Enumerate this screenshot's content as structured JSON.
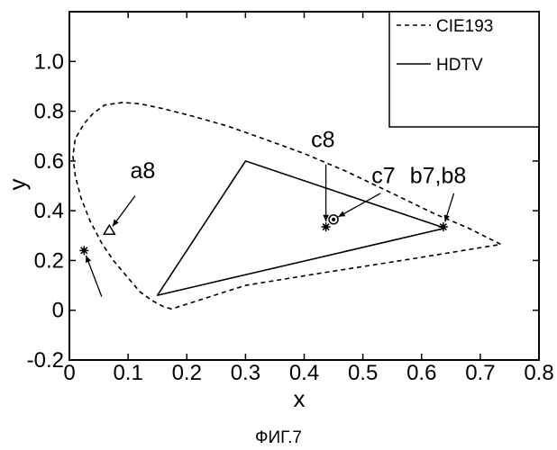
{
  "chart_data": {
    "type": "line",
    "xlabel": "x",
    "ylabel": "y",
    "xlim": [
      0,
      0.8
    ],
    "ylim": [
      -0.2,
      1.2
    ],
    "x_ticks": [
      "0",
      "0.1",
      "0.2",
      "0.3",
      "0.4",
      "0.5",
      "0.6",
      "0.7",
      "0.8"
    ],
    "y_ticks": [
      "-0.2",
      "0",
      "0.2",
      "0.4",
      "0.6",
      "0.8",
      "1.0"
    ],
    "legend_position": "top-right",
    "series": [
      {
        "name": "CIE193",
        "style": "dashed",
        "points": [
          [
            0.174,
            0.005
          ],
          [
            0.16,
            0.015
          ],
          [
            0.14,
            0.04
          ],
          [
            0.12,
            0.075
          ],
          [
            0.1,
            0.13
          ],
          [
            0.075,
            0.2
          ],
          [
            0.055,
            0.27
          ],
          [
            0.035,
            0.36
          ],
          [
            0.02,
            0.45
          ],
          [
            0.01,
            0.54
          ],
          [
            0.006,
            0.62
          ],
          [
            0.01,
            0.69
          ],
          [
            0.025,
            0.75
          ],
          [
            0.04,
            0.79
          ],
          [
            0.06,
            0.825
          ],
          [
            0.09,
            0.835
          ],
          [
            0.12,
            0.83
          ],
          [
            0.16,
            0.81
          ],
          [
            0.21,
            0.78
          ],
          [
            0.27,
            0.74
          ],
          [
            0.33,
            0.69
          ],
          [
            0.4,
            0.63
          ],
          [
            0.47,
            0.56
          ],
          [
            0.55,
            0.47
          ],
          [
            0.62,
            0.39
          ],
          [
            0.68,
            0.33
          ],
          [
            0.735,
            0.265
          ],
          [
            0.58,
            0.205
          ],
          [
            0.43,
            0.15
          ],
          [
            0.3,
            0.1
          ],
          [
            0.174,
            0.005
          ]
        ]
      },
      {
        "name": "HDTV",
        "style": "solid",
        "points": [
          [
            0.64,
            0.33
          ],
          [
            0.3,
            0.6
          ],
          [
            0.15,
            0.06
          ],
          [
            0.64,
            0.33
          ]
        ]
      }
    ],
    "markers": [
      {
        "label": "a8",
        "symbol": "triangle",
        "x": 0.068,
        "y": 0.32,
        "label_x": 0.125,
        "label_y": 0.53,
        "leader_from": [
          0.112,
          0.46
        ]
      },
      {
        "label": "c8",
        "symbol": "star",
        "x": 0.437,
        "y": 0.335,
        "label_x": 0.432,
        "label_y": 0.655,
        "leader_from": [
          0.437,
          0.585
        ]
      },
      {
        "label": "c7",
        "symbol": "circle",
        "x": 0.45,
        "y": 0.365,
        "label_x": 0.535,
        "label_y": 0.51,
        "leader_from": [
          0.53,
          0.47
        ]
      },
      {
        "label": "b7,b8",
        "symbol": "star",
        "x": 0.637,
        "y": 0.335,
        "label_x": 0.628,
        "label_y": 0.51,
        "leader_from": [
          0.655,
          0.47
        ]
      },
      {
        "label": "",
        "symbol": "star",
        "x": 0.025,
        "y": 0.24,
        "label_x": null,
        "label_y": null,
        "leader_from": [
          0.055,
          0.055
        ]
      }
    ]
  },
  "caption": "ФИГ.7"
}
